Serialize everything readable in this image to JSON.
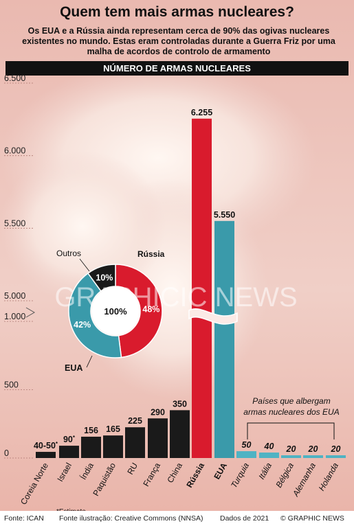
{
  "title": "Quem tem mais armas nucleares?",
  "subtitle": "Os EUA e a Rússia ainda representam cerca de 90% das ogivas nucleares existentes no mundo. Estas eram controladas durante a Guerra Friz por uma malha de acordos de controlo de armamento",
  "banner": "NÚMERO DE ARMAS NUCLEARES",
  "footer": {
    "source": "Fonte: ICAN",
    "illustration": "Fonte ilustração: Creative Commons (NNSA)",
    "date": "Dados de 2021",
    "copyright": "© GRAPHIC NEWS"
  },
  "watermark": "GRAPHIC NEWS",
  "hosts_note": "Países que albergam armas nucleares dos EUA",
  "estimate_note": "*Estimate",
  "colors": {
    "black": "#1a1a1a",
    "red": "#d91b2d",
    "teal": "#3a9aaa",
    "light_teal": "#4fb3c3"
  },
  "chart_data": [
    {
      "type": "bar",
      "title": "NÚMERO DE ARMAS NUCLEARES",
      "axis_breaks": {
        "lower_range": [
          0,
          1000
        ],
        "upper_range": [
          5000,
          6500
        ]
      },
      "y_ticks": [
        {
          "value": 0,
          "label": "0"
        },
        {
          "value": 500,
          "label": "500"
        },
        {
          "value": 1000,
          "label": "1.000"
        },
        {
          "value": 5000,
          "label": "5.000"
        },
        {
          "value": 5500,
          "label": "5.500"
        },
        {
          "value": 6000,
          "label": "6.000"
        },
        {
          "value": 6500,
          "label": "6.500"
        }
      ],
      "bars": [
        {
          "category": "Coreia Norte",
          "value": 45,
          "label": "40-50",
          "star": true,
          "group": "nuclear"
        },
        {
          "category": "Israel",
          "value": 90,
          "label": "90",
          "star": true,
          "group": "nuclear"
        },
        {
          "category": "Índia",
          "value": 156,
          "label": "156",
          "group": "nuclear"
        },
        {
          "category": "Paquistão",
          "value": 165,
          "label": "165",
          "group": "nuclear"
        },
        {
          "category": "RU",
          "value": 225,
          "label": "225",
          "group": "nuclear"
        },
        {
          "category": "França",
          "value": 290,
          "label": "290",
          "group": "nuclear"
        },
        {
          "category": "China",
          "value": 350,
          "label": "350",
          "group": "nuclear"
        },
        {
          "category": "Rússia",
          "value": 6255,
          "label": "6.255",
          "group": "russia"
        },
        {
          "category": "EUA",
          "value": 5550,
          "label": "5.550",
          "group": "usa"
        },
        {
          "category": "Turquia",
          "value": 50,
          "label": "50",
          "group": "host"
        },
        {
          "category": "Itália",
          "value": 40,
          "label": "40",
          "group": "host"
        },
        {
          "category": "Bélgica",
          "value": 20,
          "label": "20",
          "group": "host"
        },
        {
          "category": "Alemanha",
          "value": 20,
          "label": "20",
          "group": "host"
        },
        {
          "category": "Holanda",
          "value": 20,
          "label": "20",
          "group": "host"
        }
      ]
    },
    {
      "type": "pie",
      "slices": [
        {
          "name": "Rússia",
          "value": 48,
          "label": "48%"
        },
        {
          "name": "EUA",
          "value": 42,
          "label": "42%"
        },
        {
          "name": "Outros",
          "value": 10,
          "label": "10%"
        }
      ],
      "center_label": "100%"
    }
  ]
}
